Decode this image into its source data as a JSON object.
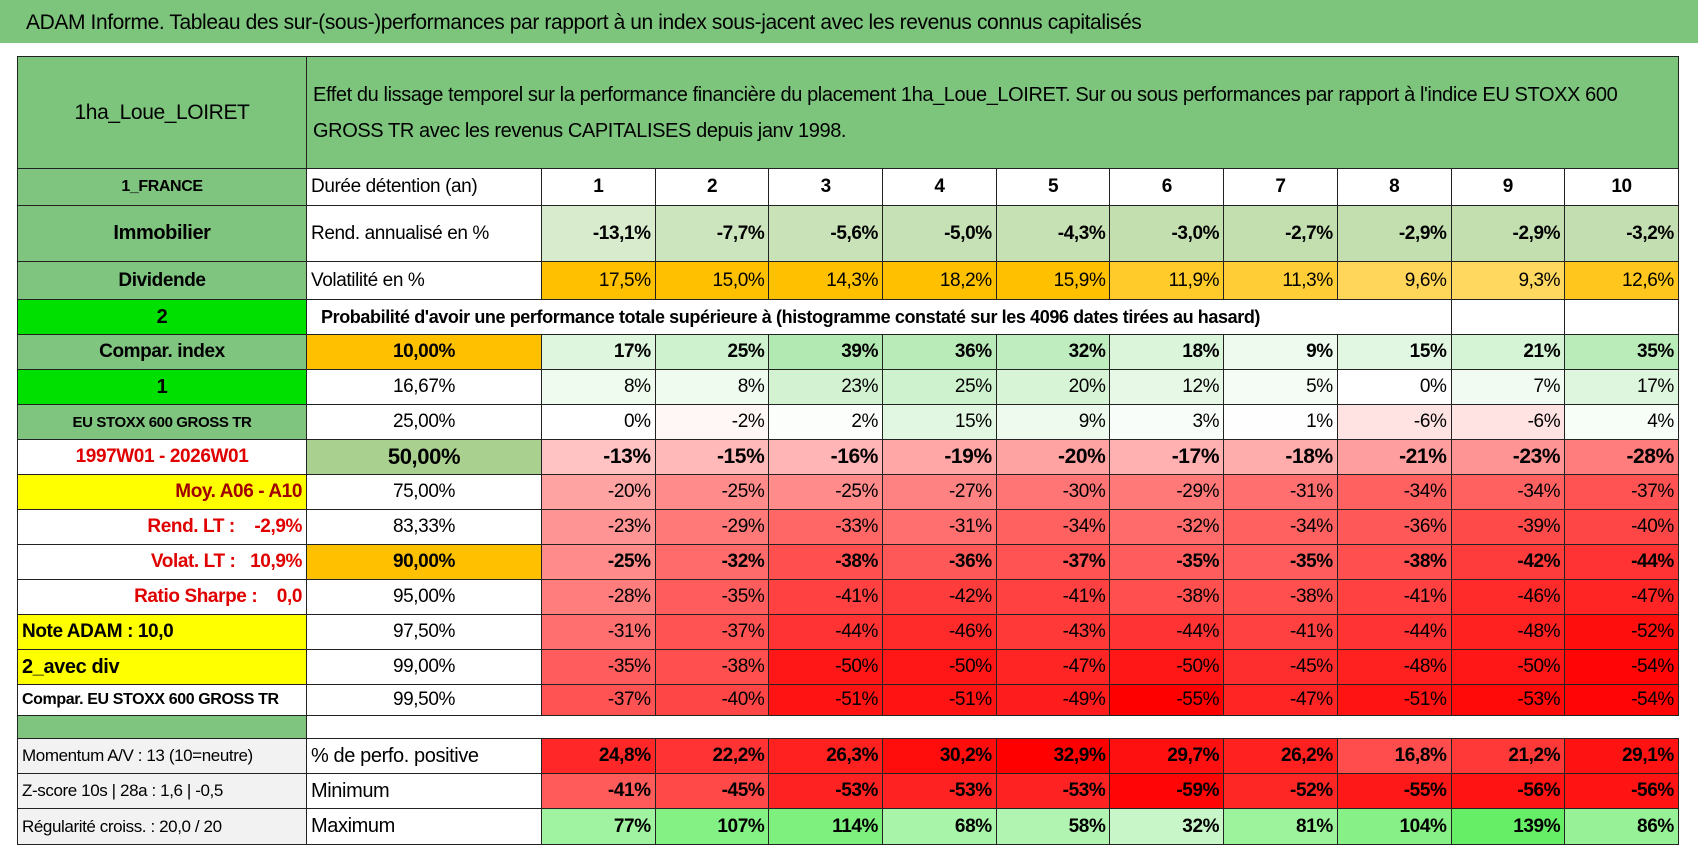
{
  "header": {
    "title": "ADAM Informe. Tableau des sur-(sous-)performances par rapport à un index sous-jacent avec les revenus connus capitalisés",
    "name": "1ha_Loue_LOIRET",
    "description": "Effet du lissage temporel sur la performance financière du placement 1ha_Loue_LOIRET. Sur ou sous performances par rapport à l'indice EU STOXX 600 GROSS TR avec les revenus CAPITALISES depuis janv 1998."
  },
  "table": {
    "rows": [
      [
        "1_FRANCE",
        "Durée détention (an)",
        1,
        2,
        3,
        4,
        5,
        6,
        7,
        8,
        9,
        10
      ],
      [
        "Immobilier",
        "Rend. annualisé en %",
        "-13,1%",
        "-7,7%",
        "-5,6%",
        "-5,0%",
        "-4,3%",
        "-3,0%",
        "-2,7%",
        "-2,9%",
        "-2,9%",
        "-3,2%"
      ],
      [
        "Dividende",
        "Volatilité en %",
        "17,5%",
        "15,0%",
        "14,3%",
        "18,2%",
        "15,9%",
        "11,9%",
        "11,3%",
        "9,6%",
        "9,3%",
        "12,6%"
      ],
      [
        "2",
        "Probabilité d'avoir une performance totale supérieure à (histogramme constaté sur les 4096 dates tirées au hasard)"
      ],
      [
        "Compar. index",
        "10,00%",
        "17%",
        "25%",
        "39%",
        "36%",
        "32%",
        "18%",
        "9%",
        "15%",
        "21%",
        "35%"
      ],
      [
        "1",
        "16,67%",
        "8%",
        "8%",
        "23%",
        "25%",
        "20%",
        "12%",
        "5%",
        "0%",
        "7%",
        "17%"
      ],
      [
        "EU STOXX 600 GROSS TR",
        "25,00%",
        "0%",
        "-2%",
        "2%",
        "15%",
        "9%",
        "3%",
        "1%",
        "-6%",
        "-6%",
        "4%"
      ],
      [
        "1997W01 - 2026W01",
        "50,00%",
        "-13%",
        "-15%",
        "-16%",
        "-19%",
        "-20%",
        "-17%",
        "-18%",
        "-21%",
        "-23%",
        "-28%"
      ],
      [
        "Moy. A06 - A10",
        "75,00%",
        "-20%",
        "-25%",
        "-25%",
        "-27%",
        "-30%",
        "-29%",
        "-31%",
        "-34%",
        "-34%",
        "-37%"
      ],
      [
        "Rend. LT :    -2,9%",
        "83,33%",
        "-23%",
        "-29%",
        "-33%",
        "-31%",
        "-34%",
        "-32%",
        "-34%",
        "-36%",
        "-39%",
        "-40%"
      ],
      [
        "Volat. LT :   10,9%",
        "90,00%",
        "-25%",
        "-32%",
        "-38%",
        "-36%",
        "-37%",
        "-35%",
        "-35%",
        "-38%",
        "-42%",
        "-44%"
      ],
      [
        "Ratio Sharpe :    0,0",
        "95,00%",
        "-28%",
        "-35%",
        "-41%",
        "-42%",
        "-41%",
        "-38%",
        "-38%",
        "-41%",
        "-46%",
        "-47%"
      ],
      [
        "Note ADAM : 10,0",
        "97,50%",
        "-31%",
        "-37%",
        "-44%",
        "-46%",
        "-43%",
        "-44%",
        "-41%",
        "-44%",
        "-48%",
        "-52%"
      ],
      [
        "2_avec div",
        "99,00%",
        "-35%",
        "-38%",
        "-50%",
        "-50%",
        "-47%",
        "-50%",
        "-45%",
        "-48%",
        "-50%",
        "-54%"
      ],
      [
        "Compar. EU STOXX 600 GROSS TR",
        "99,50%",
        "-37%",
        "-40%",
        "-51%",
        "-51%",
        "-49%",
        "-55%",
        "-47%",
        "-51%",
        "-53%",
        "-54%"
      ],
      [
        "Momentum A/V : 13 (10=neutre)",
        "% de perfo. positive",
        "24,8%",
        "22,2%",
        "26,3%",
        "30,2%",
        "32,9%",
        "29,7%",
        "26,2%",
        "16,8%",
        "21,2%",
        "29,1%"
      ],
      [
        "Z-score 10s | 28a : 1,6 | -0,5",
        "Minimum",
        "-41%",
        "-45%",
        "-53%",
        "-53%",
        "-53%",
        "-59%",
        "-52%",
        "-55%",
        "-56%",
        "-56%"
      ],
      [
        "Régularité croiss. : 20,0 / 20",
        "Maximum",
        "77%",
        "107%",
        "114%",
        "68%",
        "58%",
        "32%",
        "81%",
        "104%",
        "139%",
        "86%"
      ]
    ]
  }
}
